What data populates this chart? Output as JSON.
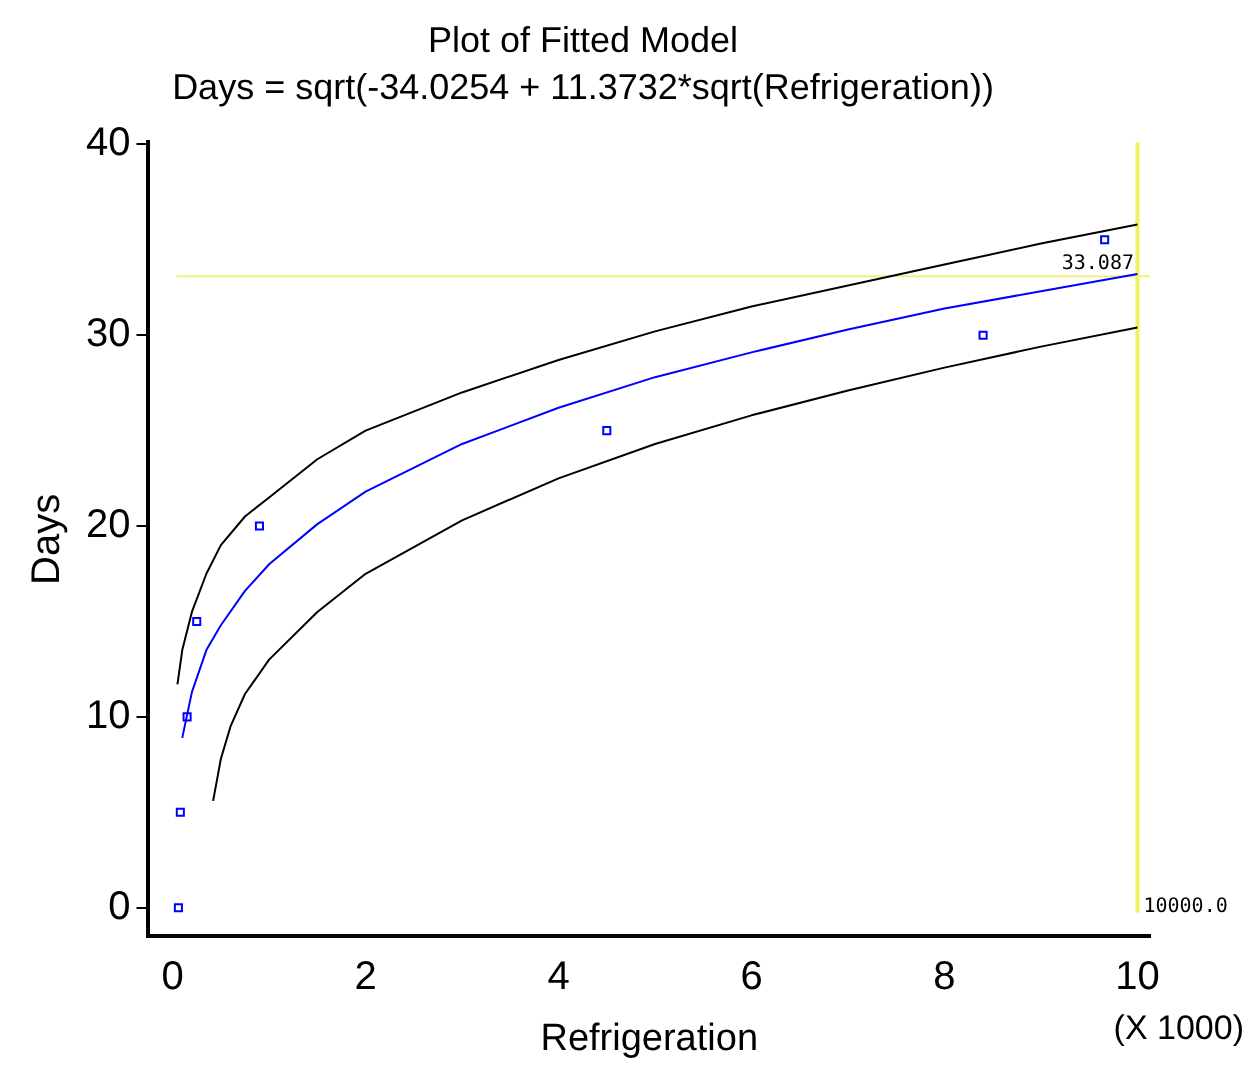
{
  "chart_data": {
    "type": "scatter",
    "title": "Plot of Fitted Model",
    "subtitle": "Days = sqrt(-34.0254 + 11.3732*sqrt(Refrigeration))",
    "xlabel": "Refrigeration",
    "ylabel": "Days",
    "annotations": [
      "(X 1000)"
    ],
    "xlim": [
      -0.25,
      10.13
    ],
    "ylim": [
      -1.5,
      40.1
    ],
    "xticks": [
      0,
      2,
      4,
      6,
      8,
      10
    ],
    "yticks": [
      0,
      10,
      20,
      30,
      40
    ],
    "grid": false,
    "legend": false,
    "series": [
      {
        "type": "line",
        "color": "#000000",
        "marker": "none",
        "x": [
          0.05,
          0.1,
          0.2,
          0.35,
          0.5,
          0.75,
          1,
          1.5,
          2,
          3,
          4,
          5,
          6,
          7,
          8,
          9,
          10
        ],
        "values": [
          11.7,
          13.5,
          15.5,
          17.5,
          19,
          20.5,
          21.5,
          23.5,
          25,
          27,
          28.7,
          30.2,
          31.5,
          32.6,
          33.7,
          34.8,
          35.8
        ]
      },
      {
        "type": "line",
        "color": "#0000ff",
        "marker": "none",
        "x": [
          0.1,
          0.2,
          0.35,
          0.5,
          0.75,
          1,
          1.5,
          2,
          3,
          4,
          5,
          6,
          7,
          8,
          9,
          10
        ],
        "values": [
          8.9,
          11.3,
          13.5,
          14.8,
          16.6,
          18,
          20.1,
          21.8,
          24.3,
          26.2,
          27.8,
          29.1,
          30.3,
          31.4,
          32.3,
          33.2
        ]
      },
      {
        "type": "line",
        "color": "#000000",
        "marker": "none",
        "x": [
          0.42,
          0.5,
          0.6,
          0.75,
          1,
          1.5,
          2,
          3,
          4,
          5,
          6,
          7,
          8,
          9,
          10
        ],
        "values": [
          5.6,
          7.8,
          9.5,
          11.2,
          13,
          15.5,
          17.5,
          20.3,
          22.5,
          24.3,
          25.8,
          27.1,
          28.3,
          29.4,
          30.4
        ]
      },
      {
        "color": "#0000ff",
        "marker": "square",
        "x": [
          0.06,
          0.08,
          0.15,
          0.25,
          0.9,
          4.5,
          8.4,
          9.66
        ],
        "values": [
          0,
          5,
          10,
          15,
          20,
          25,
          30,
          35
        ]
      }
    ],
    "ref_lines": [
      {
        "axis": "y",
        "value": 33.087,
        "label": "33.087",
        "color": "#f0f080"
      },
      {
        "axis": "x",
        "value": 10,
        "label": "10000.0",
        "color": "#f0f060"
      }
    ]
  }
}
